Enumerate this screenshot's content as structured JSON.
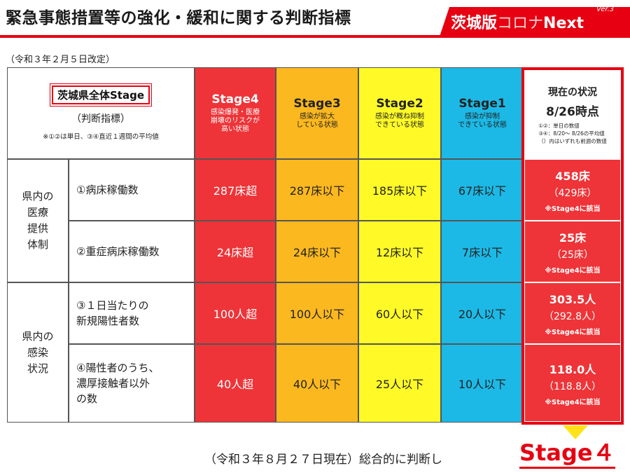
{
  "header": {
    "title": "緊急事態措置等の強化・緩和に関する判断指標",
    "logo_main": "茨城版",
    "logo_highlight": "コロナ",
    "logo_suffix": "Next",
    "version": "Ver.3"
  },
  "revision_note": "（令和３年２月５日改定）",
  "table": {
    "corner": {
      "label": "茨城県全体Stage",
      "subheading": "（判断指標）",
      "note": "※①②は単日、③④直近１週間の平均値"
    },
    "stages": [
      {
        "name": "Stage4",
        "desc": "感染爆発・医療\n崩壊のリスクが\n高い状態",
        "color": "#ee3438"
      },
      {
        "name": "Stage3",
        "desc": "感染が拡大\nしている状態",
        "color": "#fbb81f"
      },
      {
        "name": "Stage2",
        "desc": "感染が概ね抑制\nできている状態",
        "color": "#fffa27"
      },
      {
        "name": "Stage1",
        "desc": "感染が抑制\nできている状態",
        "color": "#1cb9e6"
      }
    ],
    "groups": [
      {
        "label": "県内の\n医療\n提供\n体制"
      },
      {
        "label": "県内の\n感染\n状況"
      }
    ],
    "rows": [
      {
        "indicator": "①病床稼働数",
        "values": [
          "287床超",
          "287床以下",
          "185床以下",
          "67床以下"
        ]
      },
      {
        "indicator": "②重症病床稼働数",
        "values": [
          "24床超",
          "24床以下",
          "12床以下",
          "7床以下"
        ]
      },
      {
        "indicator": "③１日当たりの\n新規陽性者数",
        "values": [
          "100人超",
          "100人以下",
          "60人以下",
          "20人以下"
        ]
      },
      {
        "indicator": "④陽性者のうち、\n濃厚接触者以外\nの数",
        "values": [
          "40人超",
          "40人以下",
          "25人以下",
          "10人以下"
        ]
      }
    ],
    "current": {
      "title": "現在の状況",
      "date": "8/26時点",
      "note": "①②：単日の数値\n③④：8/20～ 8/26の平均値\n（）内はいずれも前週の数値",
      "values": [
        {
          "main": "458床",
          "previous": "（429床）",
          "flag": "※Stage4に該当"
        },
        {
          "main": "25床",
          "previous": "（25床）",
          "flag": "※Stage4に該当"
        },
        {
          "main": "303.5人",
          "previous": "（292.8人）",
          "flag": "※Stage4に該当"
        },
        {
          "main": "118.0人",
          "previous": "（118.8人）",
          "flag": "※Stage4に該当"
        }
      ]
    }
  },
  "footer": {
    "text": "（令和３年８月２７日現在）総合的に判断し",
    "conclusion": "Stage４"
  },
  "colors": {
    "accent": "#e60012",
    "arrow": "#ffe31a"
  }
}
